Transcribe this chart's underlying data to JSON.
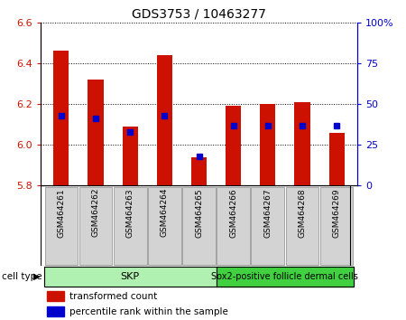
{
  "title": "GDS3753 / 10463277",
  "samples": [
    "GSM464261",
    "GSM464262",
    "GSM464263",
    "GSM464264",
    "GSM464265",
    "GSM464266",
    "GSM464267",
    "GSM464268",
    "GSM464269"
  ],
  "red_values": [
    6.46,
    6.32,
    6.09,
    6.44,
    5.94,
    6.19,
    6.2,
    6.21,
    6.06
  ],
  "blue_values": [
    43,
    41,
    33,
    43,
    18,
    37,
    37,
    37,
    37
  ],
  "ylim_left": [
    5.8,
    6.6
  ],
  "ylim_right": [
    0,
    100
  ],
  "yticks_left": [
    5.8,
    6.0,
    6.2,
    6.4,
    6.6
  ],
  "yticks_right": [
    0,
    25,
    50,
    75,
    100
  ],
  "ytick_labels_right": [
    "0",
    "25",
    "50",
    "75",
    "100%"
  ],
  "skp_label": "SKP",
  "sox_label": "Sox2-positive follicle dermal cells",
  "skp_color": "#b0f0b0",
  "sox_color": "#40d040",
  "cell_type_label": "cell type",
  "legend_red": "transformed count",
  "legend_blue": "percentile rank within the sample",
  "bar_color": "#cc1100",
  "blue_color": "#0000cc",
  "axis_left_color": "#cc1100",
  "axis_right_color": "#0000cc",
  "background_color": "#ffffff",
  "plot_bg_color": "#ffffff",
  "bar_width": 0.45,
  "base_value": 5.8,
  "skp_count": 5,
  "sox_count": 4
}
